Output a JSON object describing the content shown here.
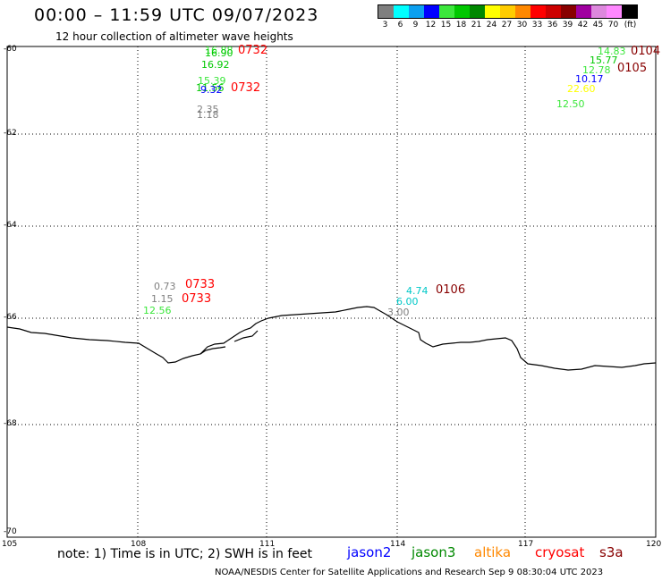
{
  "header": {
    "title": "00:00 – 11:59 UTC 09/07/2023",
    "subtitle": "12 hour collection of altimeter wave heights"
  },
  "color_scale": {
    "colors": [
      "#7f7f7f",
      "#00ffff",
      "#0ca0f0",
      "#0000ff",
      "#3ce73c",
      "#00c800",
      "#008800",
      "#ffff00",
      "#ffcc00",
      "#ff8800",
      "#ff0000",
      "#cc0000",
      "#880000",
      "#a000a0",
      "#dd88dd",
      "#ff88ff",
      "#000000"
    ],
    "labels": [
      "3",
      "6",
      "9",
      "12",
      "15",
      "18",
      "21",
      "24",
      "27",
      "30",
      "33",
      "36",
      "39",
      "42",
      "45",
      "70",
      "(ft)"
    ]
  },
  "axes": {
    "lat_labels": [
      "-60",
      "-62",
      "-64",
      "-66",
      "-68",
      "-70"
    ],
    "lon_labels": [
      "105",
      "108",
      "111",
      "114",
      "117",
      "120"
    ]
  },
  "measurements": [
    {
      "text": "16.88",
      "color": "#3ce73c"
    },
    {
      "text": "16.90",
      "color": "#00c800"
    },
    {
      "text": "16.92",
      "color": "#00c800"
    },
    {
      "text": "15.39",
      "color": "#3ce73c"
    },
    {
      "text": "11.56",
      "color": "#00c800"
    },
    {
      "text": "9.32",
      "color": "#0000ff"
    },
    {
      "text": "2.35",
      "color": "#7f7f7f"
    },
    {
      "text": "1.18",
      "color": "#7f7f7f"
    },
    {
      "text": "14.83",
      "color": "#3ce73c"
    },
    {
      "text": "15.77",
      "color": "#00c800"
    },
    {
      "text": "12.78",
      "color": "#3ce73c"
    },
    {
      "text": "10.17",
      "color": "#0000ff"
    },
    {
      "text": "22.60",
      "color": "#ffff00"
    },
    {
      "text": "12.50",
      "color": "#3ce73c"
    },
    {
      "text": "0.73",
      "color": "#7f7f7f"
    },
    {
      "text": "1.15",
      "color": "#7f7f7f"
    },
    {
      "text": "12.56",
      "color": "#3ce73c"
    },
    {
      "text": "4.74",
      "color": "#00c8c8"
    },
    {
      "text": "6.00",
      "color": "#00c8c8"
    },
    {
      "text": "3.00",
      "color": "#7f7f7f"
    }
  ],
  "time_tags": [
    {
      "text": "0732",
      "color": "#ff0000"
    },
    {
      "text": "0732",
      "color": "#ff0000"
    },
    {
      "text": "0104",
      "color": "#880000"
    },
    {
      "text": "0105",
      "color": "#880000"
    },
    {
      "text": "0733",
      "color": "#ff0000"
    },
    {
      "text": "0733",
      "color": "#ff0000"
    },
    {
      "text": "0106",
      "color": "#880000"
    }
  ],
  "footer": {
    "note": "note: 1) Time is in UTC; 2) SWH is in feet",
    "satellites": [
      {
        "name": "jason2",
        "color": "#0000ff"
      },
      {
        "name": "jason3",
        "color": "#008800"
      },
      {
        "name": "altika",
        "color": "#ff8800"
      },
      {
        "name": "cryosat",
        "color": "#ff0000"
      },
      {
        "name": "s3a",
        "color": "#880000"
      }
    ],
    "credit": "NOAA/NESDIS Center for Satellite Applications and Research    Sep  9 08:30:04 UTC 2023"
  }
}
